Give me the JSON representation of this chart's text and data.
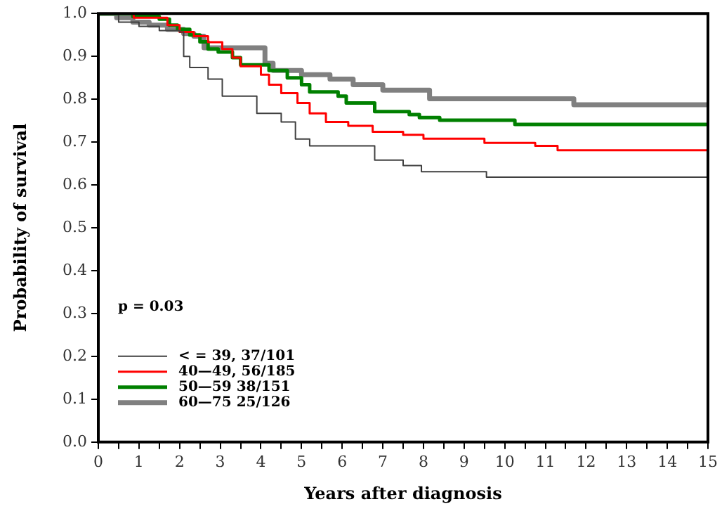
{
  "chart_data": {
    "type": "step",
    "xlabel": "Years after diagnosis",
    "ylabel": "Probability of survival",
    "xlim": [
      0,
      15
    ],
    "ylim": [
      0,
      1
    ],
    "xticks": [
      0,
      {
        "value": 0.5,
        "label": null
      },
      1,
      {
        "value": 1.5,
        "label": null
      },
      2,
      {
        "value": 2.5,
        "label": null
      },
      3,
      {
        "value": 3.5,
        "label": null
      },
      4,
      {
        "value": 4.5,
        "label": null
      },
      5,
      {
        "value": 5.5,
        "label": null
      },
      6,
      {
        "value": 6.5,
        "label": null
      },
      7,
      {
        "value": 7.5,
        "label": null
      },
      8,
      {
        "value": 8.5,
        "label": null
      },
      9,
      {
        "value": 9.5,
        "label": null
      },
      10,
      {
        "value": 10.5,
        "label": null
      },
      11,
      {
        "value": 11.5,
        "label": null
      },
      12,
      {
        "value": 12.5,
        "label": null
      },
      13,
      {
        "value": 13.5,
        "label": null
      },
      14,
      {
        "value": 14.5,
        "label": null
      },
      15
    ],
    "yticks": [
      {
        "value": 0,
        "label": "0.0"
      },
      {
        "value": 0.1,
        "label": "0.1"
      },
      {
        "value": 0.2,
        "label": "0.2"
      },
      {
        "value": 0.3,
        "label": "0.3"
      },
      {
        "value": 0.4,
        "label": "0.4"
      },
      {
        "value": 0.5,
        "label": "0.5"
      },
      {
        "value": 0.6,
        "label": "0.6"
      },
      {
        "value": 0.7,
        "label": "0.7"
      },
      {
        "value": 0.8,
        "label": "0.8"
      },
      {
        "value": 0.9,
        "label": "0.9"
      },
      {
        "value": 1,
        "label": "1.0"
      }
    ],
    "grid": false,
    "legend": "bottom left",
    "marker": "none",
    "line_style": "solid",
    "annotations": [
      "p = 0.03"
    ],
    "series": [
      {
        "name": "< = 39, 37/101",
        "color": "#404040",
        "x": [
          0,
          0.5,
          1,
          1.5,
          2,
          2.1,
          2.25,
          2.7,
          3.05,
          3.9,
          4.5,
          4.85,
          5.2,
          6.8,
          7.5,
          7.95,
          9.55,
          15
        ],
        "values": [
          1,
          0.98,
          0.97,
          0.96,
          0.957,
          0.9,
          0.874,
          0.847,
          0.807,
          0.767,
          0.747,
          0.707,
          0.691,
          0.658,
          0.645,
          0.631,
          0.618,
          0.618
        ]
      },
      {
        "name": "40—49, 56/185",
        "color": "#ff0000",
        "x": [
          0,
          0.87,
          1.7,
          2.0,
          2.35,
          2.7,
          3.05,
          3.3,
          3.5,
          4.0,
          4.2,
          4.5,
          4.9,
          5.2,
          5.6,
          6.15,
          6.75,
          7.5,
          8.0,
          9.5,
          10.75,
          11.3,
          15
        ],
        "values": [
          1,
          0.99,
          0.973,
          0.957,
          0.947,
          0.933,
          0.917,
          0.897,
          0.877,
          0.857,
          0.834,
          0.814,
          0.791,
          0.767,
          0.747,
          0.738,
          0.724,
          0.717,
          0.708,
          0.698,
          0.691,
          0.681,
          0.681
        ]
      },
      {
        "name": "50—59 38/151",
        "color": "#008000",
        "x": [
          0,
          0.85,
          1.5,
          1.75,
          1.95,
          2.25,
          2.5,
          2.7,
          2.95,
          3.3,
          3.5,
          4.2,
          4.65,
          5.0,
          5.2,
          5.9,
          6.1,
          6.8,
          7.65,
          7.9,
          8.4,
          10.25,
          15
        ],
        "values": [
          1,
          0.993,
          0.987,
          0.973,
          0.963,
          0.95,
          0.934,
          0.917,
          0.91,
          0.897,
          0.88,
          0.867,
          0.85,
          0.834,
          0.817,
          0.807,
          0.791,
          0.771,
          0.764,
          0.757,
          0.751,
          0.741,
          0.741
        ]
      },
      {
        "name": "60—75 25/126",
        "color": "#808080",
        "x": [
          0,
          0.45,
          0.85,
          1.25,
          1.7,
          2.1,
          2.35,
          2.6,
          4.1,
          4.3,
          5.0,
          5.7,
          6.27,
          7.0,
          8.15,
          11.7,
          15
        ],
        "values": [
          1,
          0.99,
          0.98,
          0.973,
          0.963,
          0.953,
          0.947,
          0.92,
          0.884,
          0.867,
          0.857,
          0.847,
          0.834,
          0.821,
          0.801,
          0.787,
          0.787
        ]
      }
    ]
  }
}
